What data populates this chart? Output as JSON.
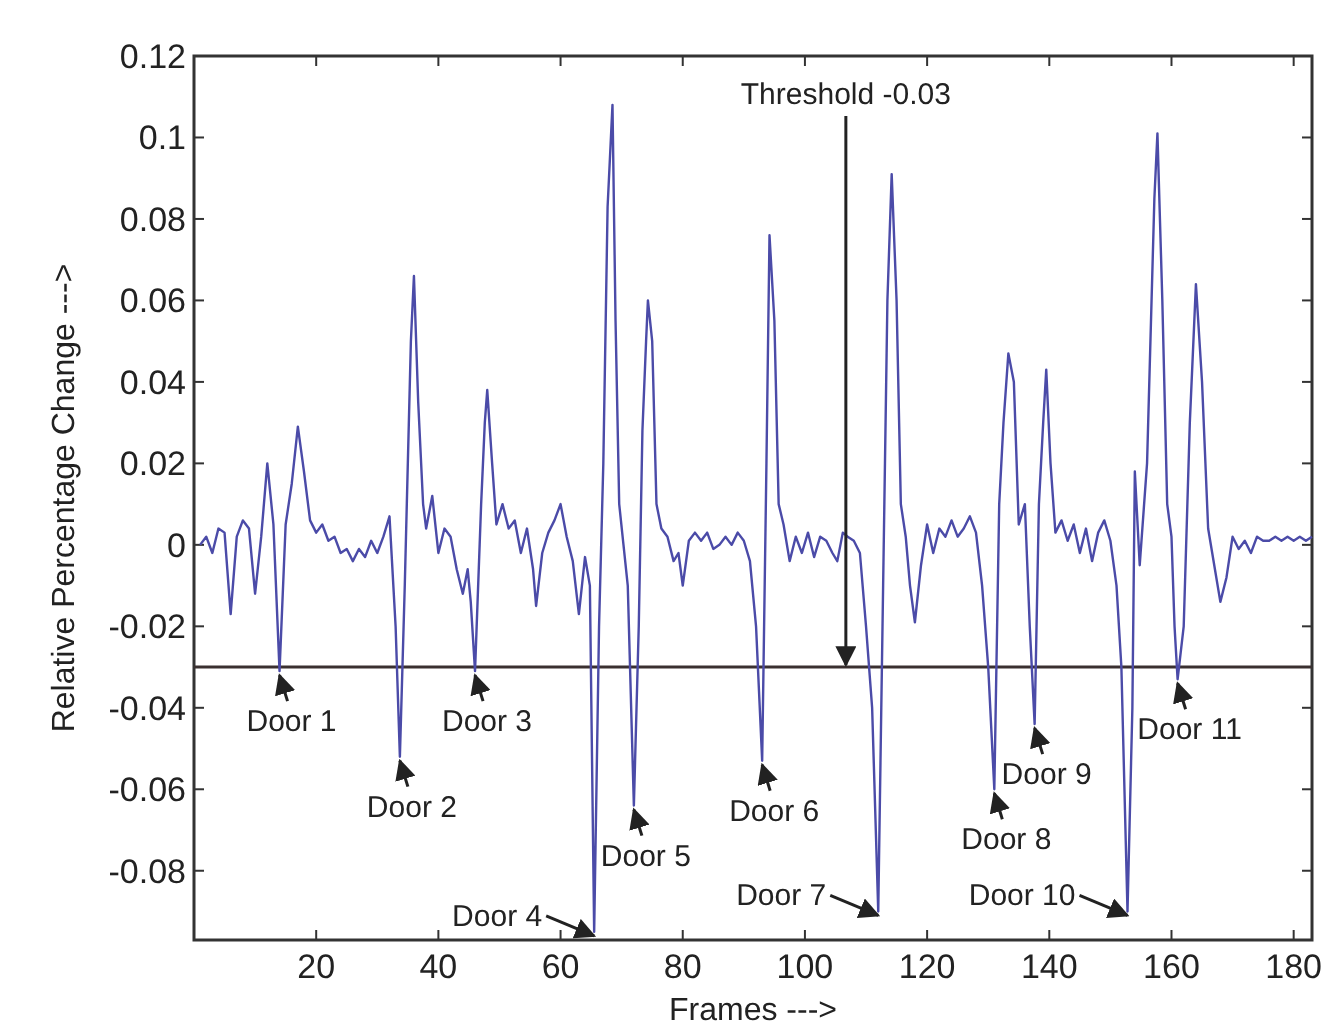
{
  "chart_data": {
    "type": "line",
    "xlabel": "Frames --->",
    "ylabel": "Relative Percentage Change --->",
    "xlim": [
      0,
      183
    ],
    "ylim": [
      -0.097,
      0.12
    ],
    "xticks": [
      20,
      40,
      60,
      80,
      100,
      120,
      140,
      160,
      180
    ],
    "yticks": [
      -0.08,
      -0.06,
      -0.04,
      -0.02,
      0,
      0.02,
      0.04,
      0.06,
      0.08,
      0.1,
      0.12
    ],
    "grid": false,
    "marker": "none",
    "line_style": "solid",
    "series": [
      {
        "color": "#4b4ba8",
        "x": [
          1,
          2,
          3,
          4,
          5,
          6,
          7,
          8,
          9,
          10,
          11,
          12,
          13,
          14,
          15,
          16,
          17,
          18,
          19,
          20,
          21,
          22,
          23,
          24,
          25,
          26,
          27,
          28,
          29,
          30,
          31,
          32,
          33,
          33.7,
          34.5,
          35.5,
          36,
          36.7,
          37.5,
          38,
          39,
          40,
          41,
          42,
          43,
          44,
          44.8,
          45.3,
          46,
          47,
          47.6,
          48,
          48.8,
          49.5,
          50.5,
          51.5,
          52.5,
          53.5,
          54.5,
          55.5,
          56,
          57,
          58,
          59,
          60,
          61,
          62,
          63,
          64,
          64.8,
          65.5,
          66.3,
          67,
          67.7,
          68.5,
          69,
          69.6,
          70.3,
          71,
          72,
          72.8,
          73.4,
          74,
          74.3,
          75,
          75.7,
          76.5,
          77.5,
          78.5,
          79.3,
          80,
          81,
          82,
          83,
          84,
          85,
          86,
          87,
          88,
          89,
          90,
          91,
          92,
          93,
          93.7,
          94.2,
          95,
          95.7,
          96.5,
          97.5,
          98.5,
          99.5,
          100.5,
          101.5,
          102.5,
          103.5,
          104.5,
          105.3,
          106.2,
          107,
          108,
          109,
          110,
          111,
          112,
          112.8,
          113.5,
          114.2,
          115,
          115.7,
          116.5,
          117.2,
          118,
          119,
          120,
          121,
          122,
          123,
          124,
          125,
          126,
          127,
          128,
          129,
          130,
          131,
          131.8,
          132.5,
          133.3,
          134.2,
          135,
          136,
          136.8,
          137.6,
          138.3,
          139,
          139.5,
          140.2,
          141,
          142,
          143,
          144,
          145,
          146,
          147,
          148,
          149,
          150,
          151,
          151.8,
          152.8,
          153.6,
          154,
          154.8,
          156,
          157.2,
          157.7,
          158.5,
          159.3,
          160,
          160.5,
          161,
          162,
          163,
          164,
          165,
          166,
          167,
          168,
          169,
          170,
          171,
          172,
          173,
          174,
          175,
          176,
          177,
          178,
          179,
          180,
          181,
          182,
          183
        ],
        "values": [
          0,
          0.002,
          -0.002,
          0.004,
          0.003,
          -0.017,
          0.002,
          0.006,
          0.004,
          -0.012,
          0.002,
          0.02,
          0.005,
          -0.031,
          0.005,
          0.015,
          0.029,
          0.018,
          0.006,
          0.003,
          0.005,
          0.001,
          0.002,
          -0.002,
          -0.001,
          -0.004,
          -0.001,
          -0.003,
          0.001,
          -0.002,
          0.002,
          0.007,
          -0.02,
          -0.052,
          -0.01,
          0.05,
          0.066,
          0.035,
          0.01,
          0.004,
          0.012,
          -0.002,
          0.004,
          0.002,
          -0.006,
          -0.012,
          -0.006,
          -0.014,
          -0.031,
          0.01,
          0.03,
          0.038,
          0.02,
          0.005,
          0.01,
          0.004,
          0.006,
          -0.002,
          0.004,
          -0.006,
          -0.015,
          -0.002,
          0.003,
          0.006,
          0.01,
          0.002,
          -0.004,
          -0.017,
          -0.003,
          -0.01,
          -0.095,
          -0.02,
          0.02,
          0.083,
          0.108,
          0.055,
          0.01,
          0,
          -0.01,
          -0.064,
          -0.02,
          0.028,
          0.05,
          0.06,
          0.05,
          0.01,
          0.004,
          0.002,
          -0.004,
          -0.002,
          -0.01,
          0.001,
          0.003,
          0.001,
          0.003,
          -0.001,
          0,
          0.002,
          0,
          0.003,
          0.001,
          -0.004,
          -0.02,
          -0.053,
          0.02,
          0.076,
          0.055,
          0.01,
          0.005,
          -0.004,
          0.002,
          -0.002,
          0.003,
          -0.003,
          0.002,
          0.001,
          -0.002,
          -0.004,
          0.003,
          0.002,
          0.001,
          -0.002,
          -0.02,
          -0.04,
          -0.09,
          -0.01,
          0.06,
          0.091,
          0.06,
          0.01,
          0.002,
          -0.01,
          -0.019,
          -0.005,
          0.005,
          -0.002,
          0.004,
          0.002,
          0.006,
          0.002,
          0.004,
          0.007,
          0.003,
          -0.01,
          -0.03,
          -0.06,
          0.01,
          0.03,
          0.047,
          0.04,
          0.005,
          0.01,
          -0.02,
          -0.044,
          0.01,
          0.03,
          0.043,
          0.02,
          0.003,
          0.006,
          0.001,
          0.005,
          -0.002,
          0.004,
          -0.004,
          0.003,
          0.006,
          0.001,
          -0.01,
          -0.03,
          -0.09,
          -0.04,
          0.018,
          -0.005,
          0.02,
          0.085,
          0.101,
          0.06,
          0.01,
          0.002,
          -0.02,
          -0.033,
          -0.02,
          0.03,
          0.064,
          0.04,
          0.004,
          -0.005,
          -0.014,
          -0.008,
          0.002,
          -0.001,
          0.001,
          -0.002,
          0.002,
          0.001,
          0.001,
          0.002,
          0.001,
          0.002,
          0.001,
          0.002,
          0.001,
          0.002
        ]
      }
    ],
    "ref_lines": [
      {
        "axis": "y",
        "value": -0.03,
        "color": "#3a3030"
      }
    ],
    "annotations": [
      {
        "text": "Door 1",
        "x": 14,
        "y": -0.031
      },
      {
        "text": "Door 2",
        "x": 33.7,
        "y": -0.052
      },
      {
        "text": "Door 3",
        "x": 46,
        "y": -0.031
      },
      {
        "text": "Door 4",
        "x": 65.5,
        "y": -0.095
      },
      {
        "text": "Door 5",
        "x": 72,
        "y": -0.064
      },
      {
        "text": "Door 6",
        "x": 93,
        "y": -0.053
      },
      {
        "text": "Door 7",
        "x": 112,
        "y": -0.09
      },
      {
        "text": "Door 8",
        "x": 131,
        "y": -0.06
      },
      {
        "text": "Door 9",
        "x": 137.6,
        "y": -0.044
      },
      {
        "text": "Door 10",
        "x": 152.8,
        "y": -0.09
      },
      {
        "text": "Door 11",
        "x": 161,
        "y": -0.033
      },
      {
        "text": "Threshold -0.03",
        "x": 106.7,
        "y": -0.03
      }
    ]
  }
}
